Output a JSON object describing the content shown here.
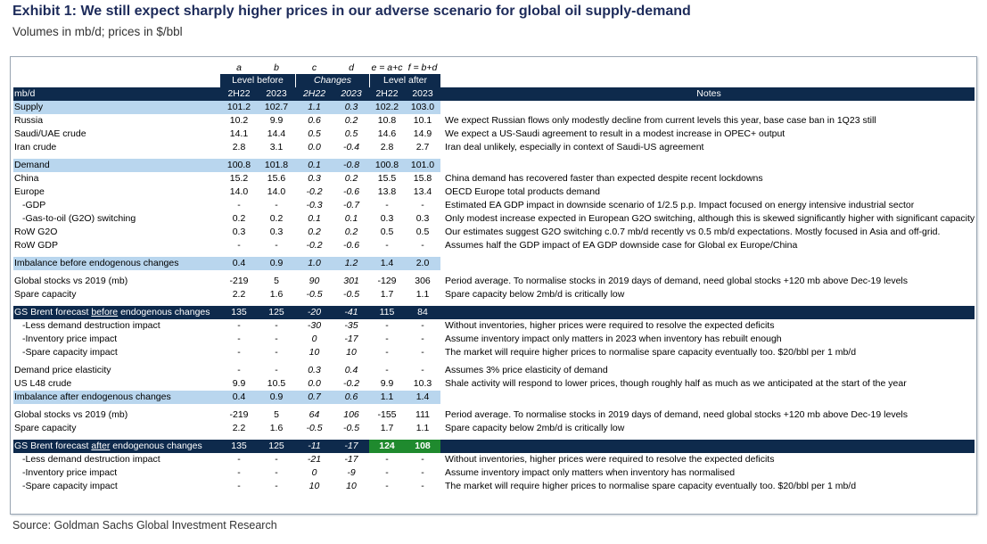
{
  "title": "Exhibit 1: We still expect sharply higher prices in our adverse scenario for global oil supply-demand",
  "subtitle": "Volumes in mb/d; prices in $/bbl",
  "source": "Source: Goldman Sachs Global Investment Research",
  "table": {
    "letters": [
      "a",
      "b",
      "c",
      "d",
      "e = a+c",
      "f = b+d"
    ],
    "groups": {
      "level_before": "Level before",
      "changes": "Changes",
      "level_after": "Level after"
    },
    "header": {
      "label": "mb/d",
      "cols": [
        "2H22",
        "2023",
        "2H22",
        "2023",
        "2H22",
        "2023"
      ],
      "notes": "Notes"
    },
    "rows": {
      "supply": {
        "label": "Supply",
        "v": [
          "101.2",
          "102.7",
          "1.1",
          "0.3",
          "102.2",
          "103.0"
        ],
        "note": ""
      },
      "russia": {
        "label": "Russia",
        "v": [
          "10.2",
          "9.9",
          "0.6",
          "0.2",
          "10.8",
          "10.1"
        ],
        "note": "We expect Russian flows only modestly decline from current levels this year, base case ban in 1Q23 still"
      },
      "saudi": {
        "label": "Saudi/UAE crude",
        "v": [
          "14.1",
          "14.4",
          "0.5",
          "0.5",
          "14.6",
          "14.9"
        ],
        "note": "We expect a US-Saudi agreement to result in a modest increase in OPEC+ output"
      },
      "iran": {
        "label": "Iran crude",
        "v": [
          "2.8",
          "3.1",
          "0.0",
          "-0.4",
          "2.8",
          "2.7"
        ],
        "note": "Iran deal unlikely, especially in context of Saudi-US agreement"
      },
      "demand": {
        "label": "Demand",
        "v": [
          "100.8",
          "101.8",
          "0.1",
          "-0.8",
          "100.8",
          "101.0"
        ],
        "note": ""
      },
      "china": {
        "label": "China",
        "v": [
          "15.2",
          "15.6",
          "0.3",
          "0.2",
          "15.5",
          "15.8"
        ],
        "note": "China demand has recovered faster than expected despite recent lockdowns"
      },
      "europe": {
        "label": "Europe",
        "v": [
          "14.0",
          "14.0",
          "-0.2",
          "-0.6",
          "13.8",
          "13.4"
        ],
        "note": "OECD Europe total products demand"
      },
      "gdp": {
        "label": "-GDP",
        "v": [
          "-",
          "-",
          "-0.3",
          "-0.7",
          "-",
          "-"
        ],
        "note": "Estimated EA GDP impact in downside scenario of 1/2.5 p.p. Impact focused on energy intensive industrial sector"
      },
      "g2o": {
        "label": "-Gas-to-oil (G2O) switching",
        "v": [
          "0.2",
          "0.2",
          "0.1",
          "0.1",
          "0.3",
          "0.3"
        ],
        "note": "Only modest increase expected in European G2O switching, although this is skewed significantly higher with significant capacity of"
      },
      "row_g2o": {
        "label": "RoW G2O",
        "v": [
          "0.3",
          "0.3",
          "0.2",
          "0.2",
          "0.5",
          "0.5"
        ],
        "note": "Our estimates suggest G2O switching c.0.7 mb/d recently vs 0.5 mb/d expectations. Mostly focused in Asia and off-grid."
      },
      "row_gdp": {
        "label": "RoW GDP",
        "v": [
          "-",
          "-",
          "-0.2",
          "-0.6",
          "-",
          "-"
        ],
        "note": "Assumes half the GDP impact of EA GDP downside case for Global ex Europe/China"
      },
      "imb_before": {
        "label": "Imbalance before endogenous changes",
        "v": [
          "0.4",
          "0.9",
          "1.0",
          "1.2",
          "1.4",
          "2.0"
        ],
        "note": ""
      },
      "stocks1": {
        "label": "Global stocks vs 2019 (mb)",
        "v": [
          "-219",
          "5",
          "90",
          "301",
          "-129",
          "306"
        ],
        "note": "Period average. To normalise stocks in 2019 days of demand, need global stocks +120 mb above Dec-19 levels"
      },
      "spare1": {
        "label": "Spare capacity",
        "v": [
          "2.2",
          "1.6",
          "-0.5",
          "-0.5",
          "1.7",
          "1.1"
        ],
        "note": "Spare capacity below 2mb/d is critically low"
      },
      "brent_before": {
        "label_pre": "GS Brent forecast ",
        "label_ul": "before",
        "label_post": " endogenous changes",
        "v": [
          "135",
          "125",
          "-20",
          "-41",
          "115",
          "84"
        ],
        "note": ""
      },
      "ldd1": {
        "label": "-Less demand destruction impact",
        "v": [
          "-",
          "-",
          "-30",
          "-35",
          "-",
          "-"
        ],
        "note": "Without inventories, higher prices were required to resolve the expected deficits"
      },
      "inv1": {
        "label": "-Inventory price impact",
        "v": [
          "-",
          "-",
          "0",
          "-17",
          "-",
          "-"
        ],
        "note": "Assume inventory impact only matters in 2023 when inventory has rebuilt enough"
      },
      "spi1": {
        "label": "-Spare capacity impact",
        "v": [
          "-",
          "-",
          "10",
          "10",
          "-",
          "-"
        ],
        "note": "The market will require higher prices to normalise spare capacity eventually too. $20/bbl per 1 mb/d"
      },
      "elasticity": {
        "label": "Demand price elasticity",
        "v": [
          "-",
          "-",
          "0.3",
          "0.4",
          "-",
          "-"
        ],
        "note": "Assumes 3% price elasticity of demand"
      },
      "usl48": {
        "label": "US L48 crude",
        "v": [
          "9.9",
          "10.5",
          "0.0",
          "-0.2",
          "9.9",
          "10.3"
        ],
        "note": "Shale activity will respond to lower prices, though roughly half as much as we anticipated at the start of the year"
      },
      "imb_after": {
        "label": "Imbalance after endogenous changes",
        "v": [
          "0.4",
          "0.9",
          "0.7",
          "0.6",
          "1.1",
          "1.4"
        ],
        "note": ""
      },
      "stocks2": {
        "label": "Global stocks vs 2019 (mb)",
        "v": [
          "-219",
          "5",
          "64",
          "106",
          "-155",
          "111"
        ],
        "note": "Period average. To normalise stocks in 2019 days of demand, need global stocks +120 mb above Dec-19 levels"
      },
      "spare2": {
        "label": "Spare capacity",
        "v": [
          "2.2",
          "1.6",
          "-0.5",
          "-0.5",
          "1.7",
          "1.1"
        ],
        "note": "Spare capacity below 2mb/d is critically low"
      },
      "brent_after": {
        "label_pre": "GS Brent forecast ",
        "label_ul": "after",
        "label_post": " endogenous changes",
        "v": [
          "135",
          "125",
          "-11",
          "-17",
          "124",
          "108"
        ],
        "note": ""
      },
      "ldd2": {
        "label": "-Less demand destruction impact",
        "v": [
          "-",
          "-",
          "-21",
          "-17",
          "-",
          "-"
        ],
        "note": "Without inventories, higher prices were required to resolve the expected deficits"
      },
      "inv2": {
        "label": "-Inventory price impact",
        "v": [
          "-",
          "-",
          "0",
          "-9",
          "-",
          "-"
        ],
        "note": "Assume inventory impact only matters when inventory has normalised"
      },
      "spi2": {
        "label": "-Spare capacity impact",
        "v": [
          "-",
          "-",
          "10",
          "10",
          "-",
          "-"
        ],
        "note": "The market will require higher prices to normalise spare capacity eventually too. $20/bbl per 1 mb/d"
      }
    }
  },
  "colors": {
    "header_bg": "#0e2a4c",
    "band_bg": "#b9d6ee",
    "highlight_bg": "#1f8a2e"
  }
}
